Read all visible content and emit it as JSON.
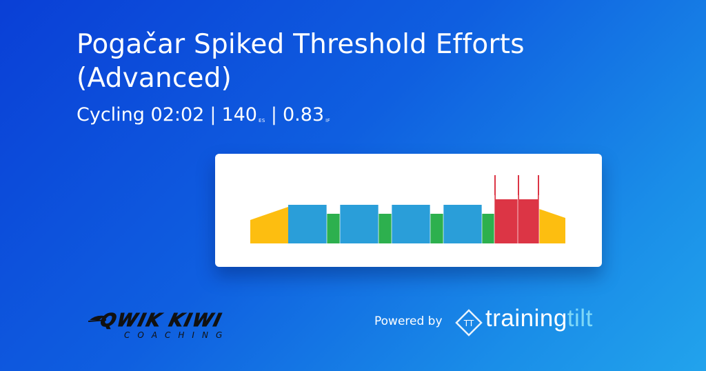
{
  "workout": {
    "title": "Pogačar Spiked Threshold Efforts (Advanced)",
    "sport": "Cycling",
    "duration": "02:02",
    "es_value": "140",
    "es_unit": "ES",
    "if_value": "0.83",
    "if_unit": "IF",
    "separator": "|"
  },
  "profile": {
    "colors": {
      "warmup": "#FDBE10",
      "threshold": "#2A9ED9",
      "recovery": "#2DB04E",
      "vo2": "#DC3545"
    },
    "segments": [
      {
        "zone": "warmup",
        "shape": "ramp-up"
      },
      {
        "zone": "threshold"
      },
      {
        "zone": "recovery"
      },
      {
        "zone": "threshold"
      },
      {
        "zone": "recovery"
      },
      {
        "zone": "threshold"
      },
      {
        "zone": "recovery"
      },
      {
        "zone": "threshold"
      },
      {
        "zone": "recovery"
      },
      {
        "zone": "vo2",
        "spike": true
      },
      {
        "zone": "vo2",
        "spike": true
      },
      {
        "zone": "warmup",
        "shape": "ramp-down"
      }
    ]
  },
  "branding": {
    "coach_name": "QWIK KIWI",
    "coach_sub": "COACHING",
    "powered_by": "Powered by",
    "tt_badge": "TT",
    "brand_main": "training",
    "brand_accent": "tilt"
  }
}
